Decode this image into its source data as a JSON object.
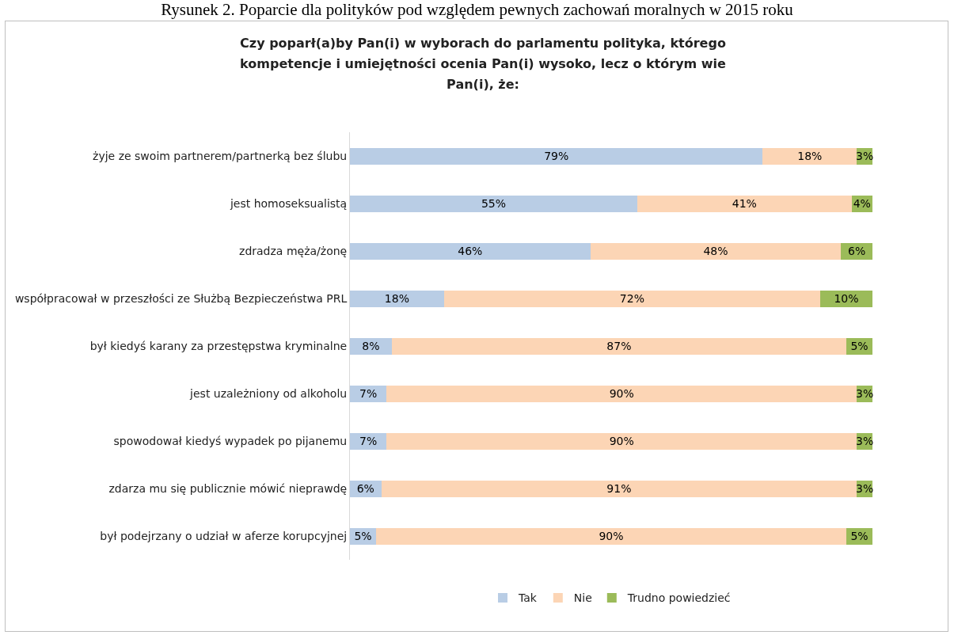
{
  "chart_data": {
    "type": "bar",
    "orientation": "horizontal",
    "stacked": true,
    "title": "Rysunek 2. Poparcie dla polityków pod względem pewnych zachowań moralnych w 2015 roku",
    "subtitle": "Czy poparł(a)by Pan(i) w wyborach do parlamentu polityka, którego kompetencje i umiejętności ocenia Pan(i) wysoko, lecz o którym wie Pan(i), że:",
    "categories": [
      "żyje ze swoim partnerem/partnerką bez ślubu",
      "jest homoseksualistą",
      "zdradza męża/żonę",
      "współpracował w przeszłości ze Służbą Bezpieczeństwa PRL",
      "był kiedyś karany za przestępstwa kryminalne",
      "jest uzależniony od alkoholu",
      "spowodował kiedyś wypadek po pijanemu",
      "zdarza mu się publicznie mówić nieprawdę",
      "był podejrzany o udział w aferze korupcyjnej"
    ],
    "series": [
      {
        "name": "Tak",
        "color": "#b9cde5",
        "values": [
          79,
          55,
          46,
          18,
          8,
          7,
          7,
          6,
          5
        ],
        "value_labels": [
          "79%",
          "55%",
          "46%",
          "18%",
          "8%",
          "7%",
          "7%",
          "6%",
          "5%"
        ]
      },
      {
        "name": "Nie",
        "color": "#fcd5b5",
        "values": [
          18,
          41,
          48,
          72,
          87,
          90,
          90,
          91,
          90
        ],
        "value_labels": [
          "18%",
          "41%",
          "48%",
          "72%",
          "87%",
          "90%",
          "90%",
          "91%",
          "90%"
        ]
      },
      {
        "name": "Trudno powiedzieć",
        "color": "#9bbb59",
        "values": [
          3,
          4,
          6,
          10,
          5,
          3,
          3,
          3,
          5
        ],
        "value_labels": [
          "3%",
          "4%",
          "6%",
          "10%",
          "5%",
          "3%",
          "3%",
          "3%",
          "5%"
        ]
      }
    ],
    "xlim": [
      0,
      100
    ],
    "tick_labels": "y",
    "grid": false,
    "legend": "bottom"
  }
}
